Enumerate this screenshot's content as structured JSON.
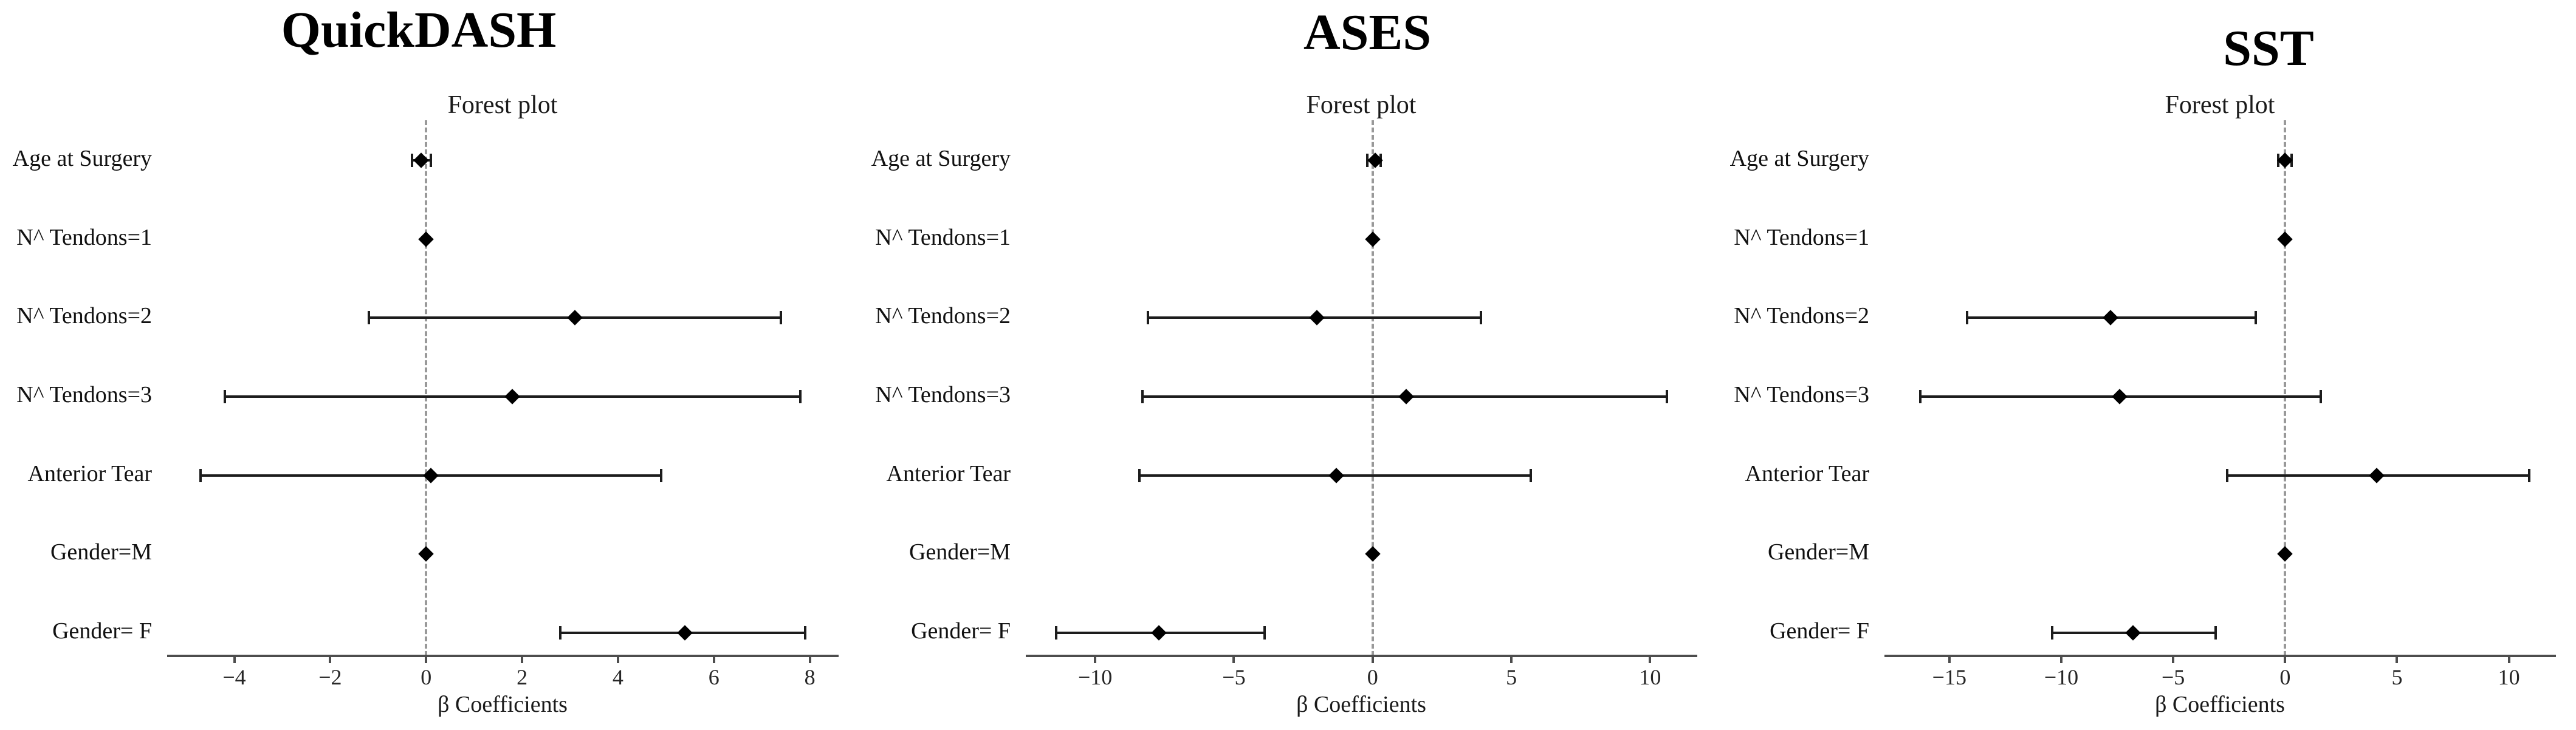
{
  "style": {
    "marker_color": "#000000",
    "ci_color": "#1c1c1c",
    "axis_color": "#4d4d4d",
    "zero_line_color": "#999999",
    "text_color": "#111111"
  },
  "chart_data": [
    {
      "type": "scatter",
      "variant": "forest-plot",
      "title": "QuickDASH",
      "subtitle": "Forest plot",
      "xlabel": "β Coefficients",
      "xlim": [
        -5.4,
        8.6
      ],
      "x_ticks": [
        -4,
        -2,
        0,
        2,
        4,
        6,
        8
      ],
      "zero_reference": 0,
      "grid": false,
      "rows": [
        {
          "label": "Age at Surgery",
          "point": -0.1,
          "ci_low": -0.3,
          "ci_high": 0.1
        },
        {
          "label": "N^ Tendons=1",
          "point": 0.0,
          "ci_low": 0.0,
          "ci_high": 0.0
        },
        {
          "label": "N^ Tendons=2",
          "point": 3.1,
          "ci_low": -1.2,
          "ci_high": 7.4
        },
        {
          "label": "N^ Tendons=3",
          "point": 1.8,
          "ci_low": -4.2,
          "ci_high": 7.8
        },
        {
          "label": "Anterior Tear",
          "point": 0.1,
          "ci_low": -4.7,
          "ci_high": 4.9
        },
        {
          "label": "Gender=M",
          "point": 0.0,
          "ci_low": 0.0,
          "ci_high": 0.0
        },
        {
          "label": "Gender= F",
          "point": 5.4,
          "ci_low": 2.8,
          "ci_high": 7.9
        }
      ]
    },
    {
      "type": "scatter",
      "variant": "forest-plot",
      "title": "ASES",
      "subtitle": "Forest plot",
      "xlabel": "β Coefficients",
      "xlim": [
        -12.5,
        11.7
      ],
      "x_ticks": [
        -10,
        -5,
        0,
        5,
        10
      ],
      "zero_reference": 0,
      "grid": false,
      "rows": [
        {
          "label": "Age at Surgery",
          "point": 0.1,
          "ci_low": -0.2,
          "ci_high": 0.3
        },
        {
          "label": "N^ Tendons=1",
          "point": 0.0,
          "ci_low": 0.0,
          "ci_high": 0.0
        },
        {
          "label": "N^ Tendons=2",
          "point": -2.0,
          "ci_low": -8.1,
          "ci_high": 3.9
        },
        {
          "label": "N^ Tendons=3",
          "point": 1.2,
          "ci_low": -8.3,
          "ci_high": 10.6
        },
        {
          "label": "Anterior Tear",
          "point": -1.3,
          "ci_low": -8.4,
          "ci_high": 5.7
        },
        {
          "label": "Gender=M",
          "point": 0.0,
          "ci_low": 0.0,
          "ci_high": 0.0
        },
        {
          "label": "Gender= F",
          "point": -7.7,
          "ci_low": -11.4,
          "ci_high": -3.9
        }
      ]
    },
    {
      "type": "scatter",
      "variant": "forest-plot",
      "title": "SST",
      "subtitle": "Forest plot",
      "xlabel": "β Coefficients",
      "xlim": [
        -17.9,
        12.1
      ],
      "x_ticks": [
        -15,
        -10,
        -5,
        0,
        5,
        10
      ],
      "zero_reference": 0,
      "grid": false,
      "rows": [
        {
          "label": "Age at Surgery",
          "point": 0.0,
          "ci_low": -0.3,
          "ci_high": 0.3
        },
        {
          "label": "N^ Tendons=1",
          "point": 0.0,
          "ci_low": 0.0,
          "ci_high": 0.0
        },
        {
          "label": "N^ Tendons=2",
          "point": -7.8,
          "ci_low": -14.2,
          "ci_high": -1.3
        },
        {
          "label": "N^ Tendons=3",
          "point": -7.4,
          "ci_low": -16.3,
          "ci_high": 1.6
        },
        {
          "label": "Anterior Tear",
          "point": 4.1,
          "ci_low": -2.6,
          "ci_high": 10.9
        },
        {
          "label": "Gender=M",
          "point": 0.0,
          "ci_low": 0.0,
          "ci_high": 0.0
        },
        {
          "label": "Gender= F",
          "point": -6.8,
          "ci_low": -10.4,
          "ci_high": -3.1
        }
      ]
    }
  ]
}
